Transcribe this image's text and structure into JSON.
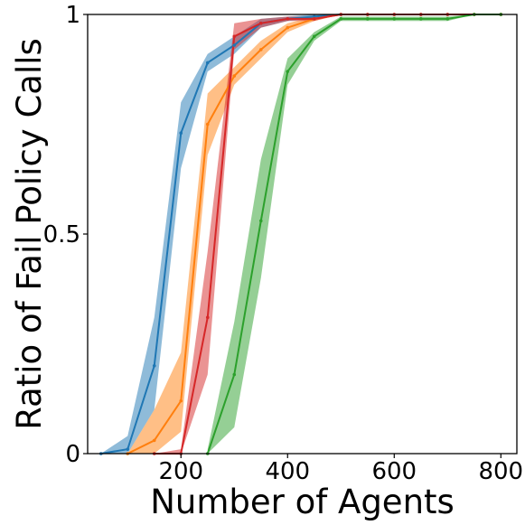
{
  "chart_data": {
    "type": "line",
    "title": "",
    "xlabel": "Number of Agents",
    "ylabel": "Ratio of Fail Policy Calls",
    "xlim": [
      25,
      830
    ],
    "ylim": [
      0,
      1
    ],
    "xticks": [
      {
        "value": 200,
        "label": "200"
      },
      {
        "value": 400,
        "label": "400"
      },
      {
        "value": 600,
        "label": "600"
      },
      {
        "value": 800,
        "label": "800"
      }
    ],
    "yticks": [
      {
        "value": 0,
        "label": "0"
      },
      {
        "value": 0.5,
        "label": "0.5"
      },
      {
        "value": 1,
        "label": "1"
      }
    ],
    "grid": false,
    "legend": false,
    "series": [
      {
        "color": "#1f77b4",
        "x": [
          50,
          100,
          150,
          200,
          250,
          300,
          350,
          400,
          450,
          500,
          550,
          600,
          650,
          700,
          750,
          800
        ],
        "y": [
          0,
          0.01,
          0.2,
          0.73,
          0.89,
          0.93,
          0.98,
          0.99,
          0.995,
          1,
          1,
          1,
          1,
          1,
          1,
          1
        ],
        "lower": [
          0,
          0,
          0.1,
          0.65,
          0.87,
          0.91,
          0.97,
          0.985,
          0.99,
          1,
          1,
          1,
          1,
          1,
          1,
          1
        ],
        "upper": [
          0,
          0.04,
          0.31,
          0.8,
          0.91,
          0.95,
          0.99,
          0.995,
          1,
          1,
          1,
          1,
          1,
          1,
          1,
          1
        ]
      },
      {
        "color": "#ff7f0e",
        "x": [
          100,
          150,
          200,
          250,
          300,
          350,
          400,
          450,
          500,
          550,
          600,
          650,
          700,
          750,
          800
        ],
        "y": [
          0,
          0.03,
          0.12,
          0.75,
          0.86,
          0.92,
          0.97,
          0.99,
          1,
          1,
          1,
          1,
          1,
          1,
          1
        ],
        "lower": [
          0,
          0,
          0.05,
          0.68,
          0.84,
          0.9,
          0.96,
          0.985,
          1,
          1,
          1,
          1,
          1,
          1,
          1
        ],
        "upper": [
          0,
          0.1,
          0.23,
          0.82,
          0.88,
          0.94,
          0.98,
          0.995,
          1,
          1,
          1,
          1,
          1,
          1,
          1
        ]
      },
      {
        "color": "#d62728",
        "x": [
          150,
          200,
          250,
          300,
          350,
          400,
          450,
          500,
          550,
          600,
          650,
          700,
          750,
          800
        ],
        "y": [
          0,
          0,
          0.31,
          0.95,
          0.98,
          0.99,
          0.99,
          1,
          1,
          1,
          1,
          1,
          1,
          1
        ],
        "lower": [
          0,
          0,
          0.18,
          0.92,
          0.97,
          0.985,
          0.985,
          1,
          1,
          1,
          1,
          1,
          1,
          1
        ],
        "upper": [
          0,
          0.01,
          0.46,
          0.98,
          0.99,
          0.995,
          0.995,
          1,
          1,
          1,
          1,
          1,
          1,
          1
        ]
      },
      {
        "color": "#2ca02c",
        "x": [
          250,
          300,
          350,
          400,
          450,
          500,
          550,
          600,
          650,
          700,
          750,
          800
        ],
        "y": [
          0,
          0.18,
          0.53,
          0.87,
          0.95,
          0.99,
          0.99,
          0.99,
          0.99,
          0.99,
          1,
          1
        ],
        "lower": [
          0,
          0.06,
          0.4,
          0.84,
          0.94,
          0.985,
          0.985,
          0.985,
          0.985,
          0.985,
          1,
          1
        ],
        "upper": [
          0.01,
          0.3,
          0.67,
          0.9,
          0.96,
          0.995,
          0.995,
          0.995,
          0.995,
          0.995,
          1,
          1
        ]
      }
    ]
  }
}
